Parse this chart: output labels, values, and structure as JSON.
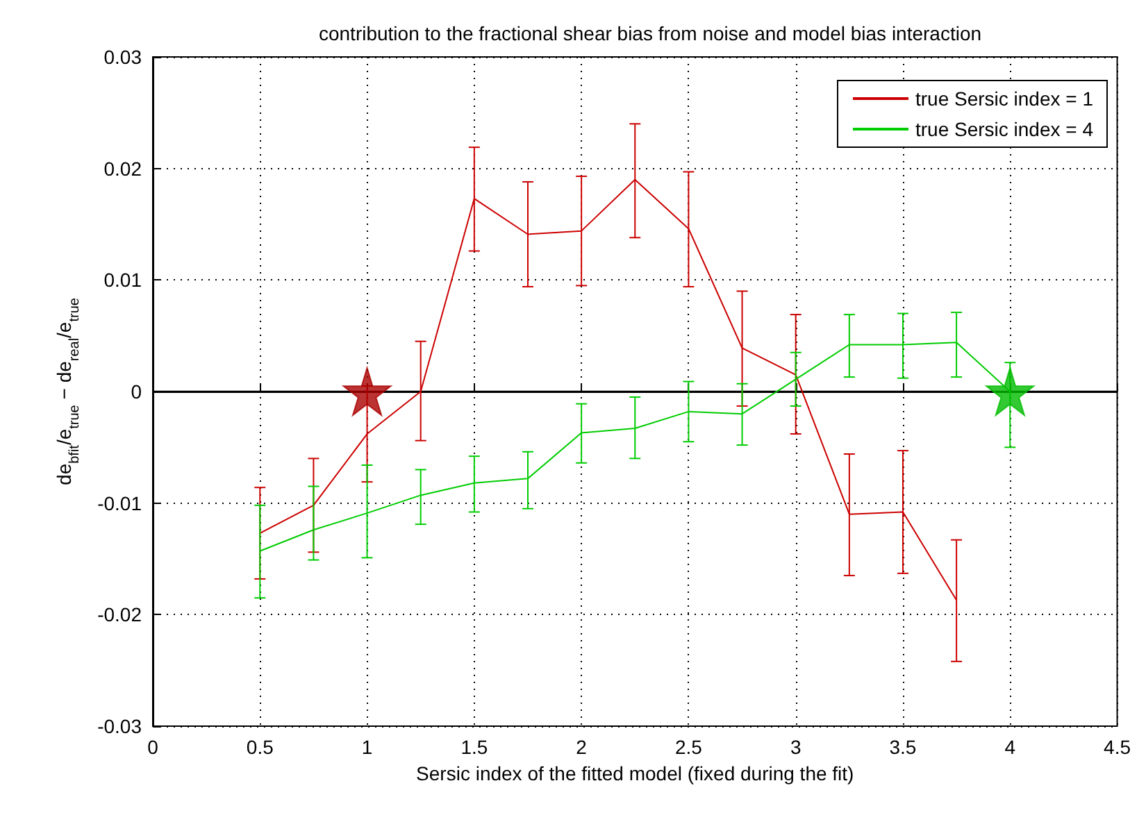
{
  "chart_data": {
    "type": "line",
    "title": "contribution to the fractional shear bias from noise and model bias interaction",
    "xlabel": "Sersic index of the fitted model (fixed during the fit)",
    "ylabel": "de$_{bfit}$/e$_{true}$ − de$_{real}$/e$_{true}$",
    "x": [
      0.5,
      0.75,
      1,
      1.25,
      1.5,
      1.75,
      2,
      2.25,
      2.5,
      2.75,
      3,
      3.25,
      3.5,
      3.75,
      4
    ],
    "series": [
      {
        "name": "true Sersic index = 1",
        "color": "#cc0000",
        "values": [
          -0.0127,
          -0.0102,
          -0.0038,
          0,
          0.0173,
          0.0141,
          0.0144,
          0.019,
          0.0146,
          0.0039,
          0.0015,
          -0.011,
          -0.0108,
          -0.0187,
          null
        ],
        "errors": [
          [
            -0.0168,
            -0.0086
          ],
          [
            -0.0144,
            -0.006
          ],
          [
            -0.0081,
            0.0005
          ],
          [
            -0.0044,
            0.0045
          ],
          [
            0.0126,
            0.0219
          ],
          [
            0.0094,
            0.0188
          ],
          [
            0.0095,
            0.0193
          ],
          [
            0.0138,
            0.024
          ],
          [
            0.0094,
            0.0197
          ],
          [
            -0.0013,
            0.009
          ],
          [
            -0.0038,
            0.0069
          ],
          [
            -0.0165,
            -0.0056
          ],
          [
            -0.0163,
            -0.0053
          ],
          [
            -0.0242,
            -0.0133
          ],
          null
        ]
      },
      {
        "name": "true Sersic index = 4",
        "color": "#00cc00",
        "values": [
          -0.0143,
          -0.0124,
          -0.0109,
          -0.0093,
          -0.0082,
          -0.0078,
          -0.0037,
          -0.0033,
          -0.0018,
          -0.002,
          0.0011,
          0.0042,
          0.0042,
          0.0044,
          0
        ],
        "errors": [
          [
            -0.0185,
            -0.0102
          ],
          [
            -0.0151,
            -0.0085
          ],
          [
            -0.0149,
            -0.0066
          ],
          [
            -0.0119,
            -0.007
          ],
          [
            -0.0108,
            -0.0058
          ],
          [
            -0.0105,
            -0.0054
          ],
          [
            -0.0064,
            -0.0011
          ],
          [
            -0.006,
            -0.0005
          ],
          [
            -0.0045,
            0.0009
          ],
          [
            -0.0048,
            0.0007
          ],
          [
            -0.0013,
            0.0035
          ],
          [
            0.0013,
            0.0069
          ],
          [
            0.0012,
            0.007
          ],
          [
            0.0013,
            0.0071
          ],
          [
            -0.005,
            0.0026
          ]
        ]
      },
      {
        "type": "scatter",
        "marker": "star",
        "color": "#aa0000",
        "x": [
          1
        ],
        "values": [
          0
        ]
      },
      {
        "type": "scatter",
        "marker": "star",
        "color": "#00bb00",
        "x": [
          4
        ],
        "values": [
          0
        ]
      }
    ],
    "xlim": [
      0,
      4.5
    ],
    "xticks": [
      0,
      0.5,
      1,
      1.5,
      2,
      2.5,
      3,
      3.5,
      4,
      4.5
    ],
    "ylim": [
      -0.03,
      0.03
    ],
    "yticks": [
      -0.03,
      -0.02,
      -0.01,
      0,
      0.01,
      0.02,
      0.03
    ],
    "ref_lines": [
      {
        "axis": "y",
        "value": 0,
        "color": "#000000"
      }
    ],
    "grid": true,
    "legend": "top right"
  }
}
